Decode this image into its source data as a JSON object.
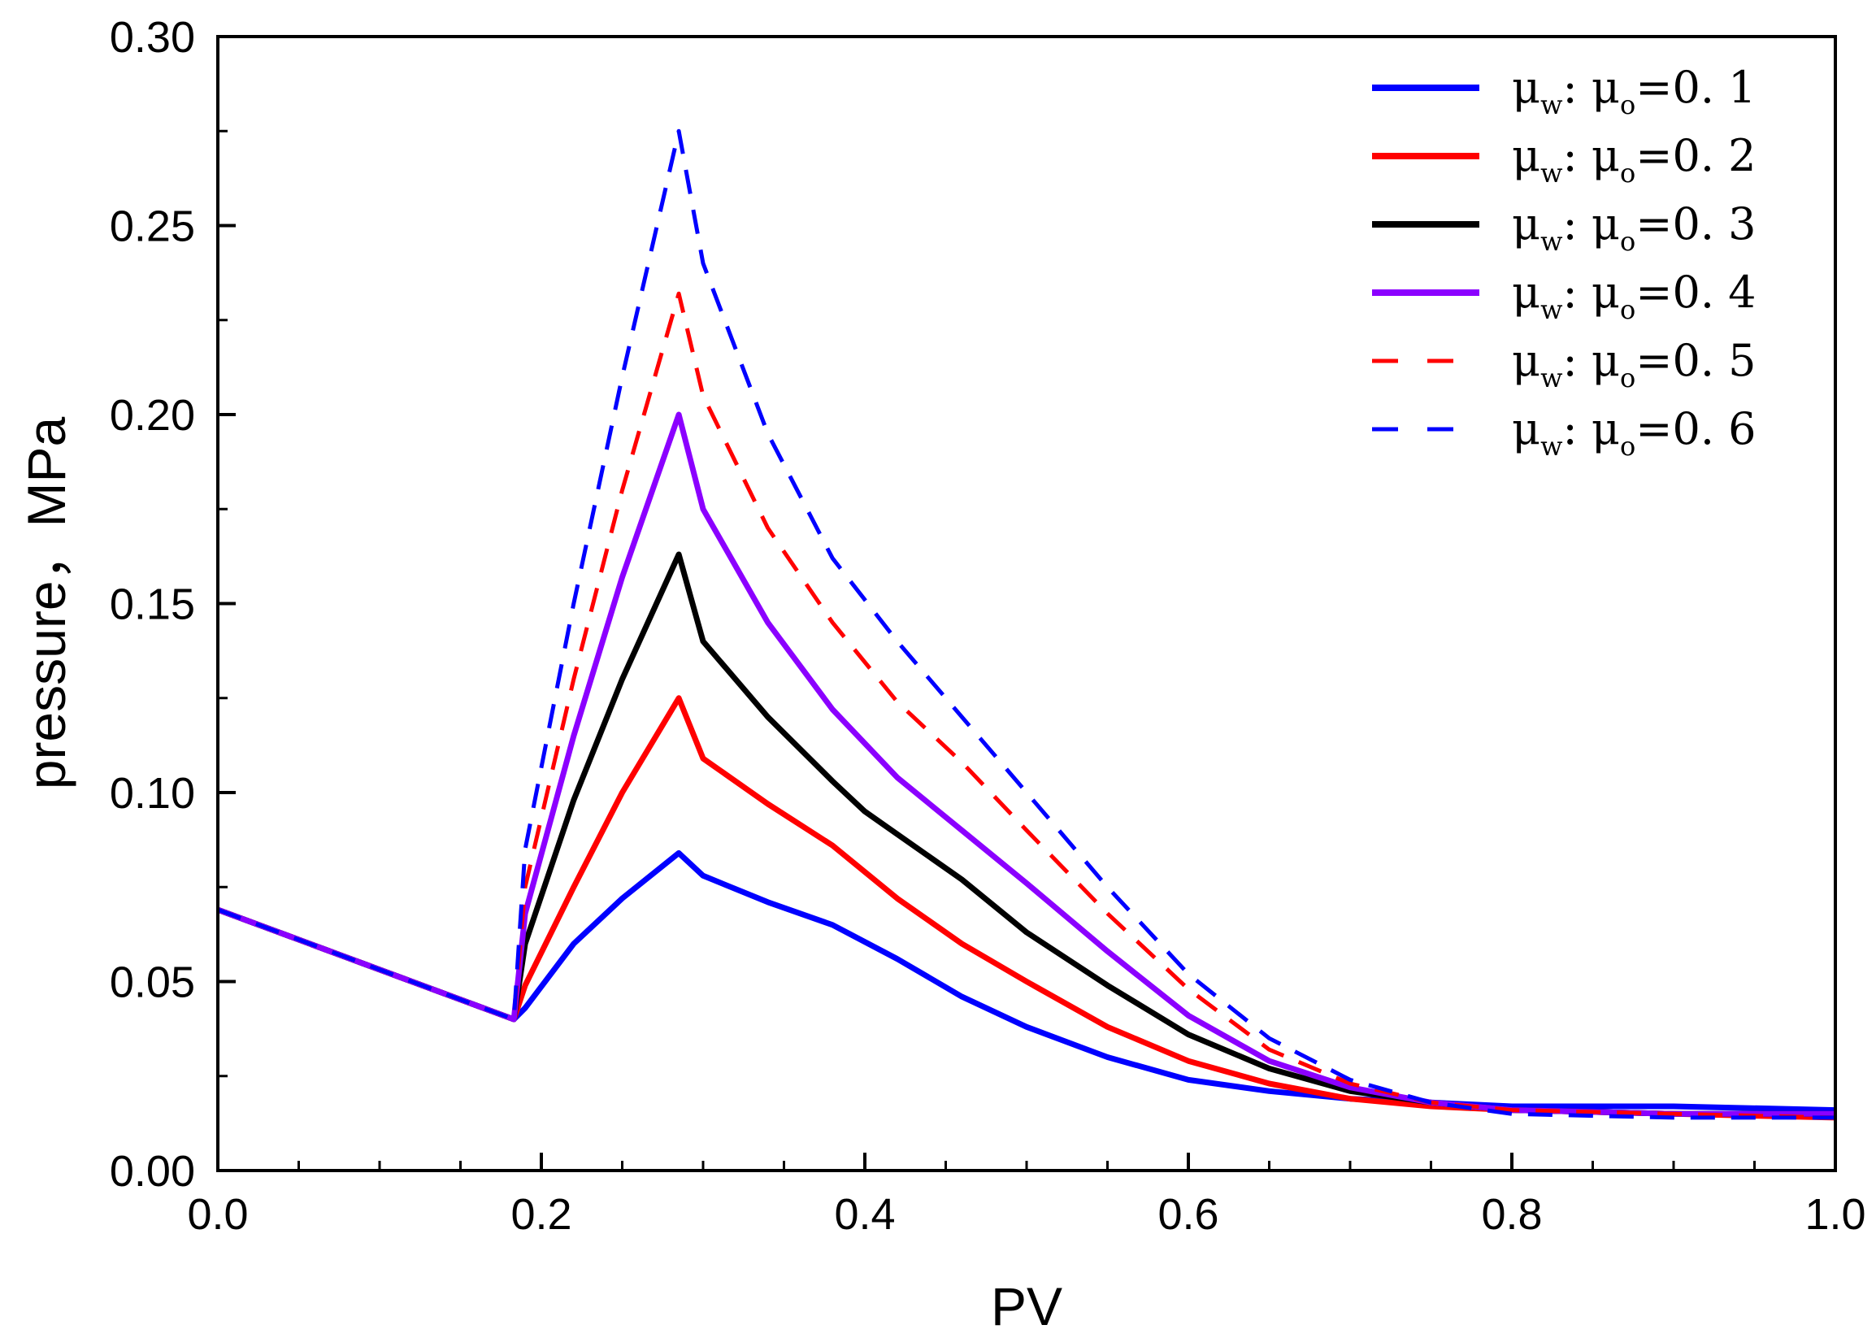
{
  "chart_data": {
    "type": "line",
    "title": "",
    "xlabel": "PV",
    "ylabel": "pressure，MPa",
    "xlim": [
      0.0,
      1.0
    ],
    "ylim": [
      0.0,
      0.3
    ],
    "x_ticks": [
      "0.0",
      "0.2",
      "0.4",
      "0.6",
      "0.8",
      "1.0"
    ],
    "y_ticks": [
      "0.00",
      "0.05",
      "0.10",
      "0.15",
      "0.20",
      "0.25",
      "0.30"
    ],
    "legend_position": "top-right",
    "series": [
      {
        "name": "μw: μo=0.1",
        "legend": {
          "symbol1": "μ",
          "sub1": "w",
          "sep": ":",
          "symbol2": "μ",
          "sub2": "o",
          "value": "=0. 1"
        },
        "color": "#0000ff",
        "style": "solid",
        "points": [
          [
            0.0,
            0.069
          ],
          [
            0.183,
            0.04
          ],
          [
            0.19,
            0.043
          ],
          [
            0.22,
            0.06
          ],
          [
            0.25,
            0.072
          ],
          [
            0.285,
            0.084
          ],
          [
            0.3,
            0.078
          ],
          [
            0.34,
            0.071
          ],
          [
            0.38,
            0.065
          ],
          [
            0.42,
            0.056
          ],
          [
            0.46,
            0.046
          ],
          [
            0.5,
            0.038
          ],
          [
            0.55,
            0.03
          ],
          [
            0.6,
            0.024
          ],
          [
            0.65,
            0.021
          ],
          [
            0.7,
            0.019
          ],
          [
            0.75,
            0.018
          ],
          [
            0.8,
            0.017
          ],
          [
            0.9,
            0.017
          ],
          [
            1.0,
            0.016
          ]
        ]
      },
      {
        "name": "μw: μo=0.2",
        "legend": {
          "symbol1": "μ",
          "sub1": "w",
          "sep": ":",
          "symbol2": "μ",
          "sub2": "o",
          "value": "=0. 2"
        },
        "color": "#ff0000",
        "style": "solid",
        "points": [
          [
            0.0,
            0.069
          ],
          [
            0.183,
            0.04
          ],
          [
            0.19,
            0.049
          ],
          [
            0.22,
            0.075
          ],
          [
            0.25,
            0.1
          ],
          [
            0.285,
            0.125
          ],
          [
            0.3,
            0.109
          ],
          [
            0.34,
            0.097
          ],
          [
            0.38,
            0.086
          ],
          [
            0.42,
            0.072
          ],
          [
            0.46,
            0.06
          ],
          [
            0.5,
            0.05
          ],
          [
            0.55,
            0.038
          ],
          [
            0.6,
            0.029
          ],
          [
            0.65,
            0.023
          ],
          [
            0.7,
            0.019
          ],
          [
            0.75,
            0.017
          ],
          [
            0.8,
            0.016
          ],
          [
            0.9,
            0.015
          ],
          [
            1.0,
            0.014
          ]
        ]
      },
      {
        "name": "μw: μo=0.3",
        "legend": {
          "symbol1": "μ",
          "sub1": "w",
          "sep": ":",
          "symbol2": "μ",
          "sub2": "o",
          "value": "=0. 3"
        },
        "color": "#000000",
        "style": "solid",
        "points": [
          [
            0.0,
            0.069
          ],
          [
            0.183,
            0.04
          ],
          [
            0.19,
            0.06
          ],
          [
            0.22,
            0.098
          ],
          [
            0.25,
            0.13
          ],
          [
            0.285,
            0.163
          ],
          [
            0.3,
            0.14
          ],
          [
            0.34,
            0.12
          ],
          [
            0.38,
            0.103
          ],
          [
            0.4,
            0.095
          ],
          [
            0.46,
            0.077
          ],
          [
            0.5,
            0.063
          ],
          [
            0.55,
            0.049
          ],
          [
            0.6,
            0.036
          ],
          [
            0.65,
            0.027
          ],
          [
            0.7,
            0.021
          ],
          [
            0.75,
            0.018
          ],
          [
            0.8,
            0.016
          ],
          [
            0.9,
            0.015
          ],
          [
            1.0,
            0.015
          ]
        ]
      },
      {
        "name": "μw: μo=0.4",
        "legend": {
          "symbol1": "μ",
          "sub1": "w",
          "sep": ":",
          "symbol2": "μ",
          "sub2": "o",
          "value": "=0. 4"
        },
        "color": "#8b00ff",
        "style": "solid",
        "points": [
          [
            0.0,
            0.069
          ],
          [
            0.183,
            0.04
          ],
          [
            0.19,
            0.068
          ],
          [
            0.22,
            0.115
          ],
          [
            0.25,
            0.157
          ],
          [
            0.285,
            0.2
          ],
          [
            0.3,
            0.175
          ],
          [
            0.34,
            0.145
          ],
          [
            0.38,
            0.122
          ],
          [
            0.42,
            0.104
          ],
          [
            0.46,
            0.09
          ],
          [
            0.5,
            0.076
          ],
          [
            0.55,
            0.058
          ],
          [
            0.6,
            0.041
          ],
          [
            0.65,
            0.029
          ],
          [
            0.7,
            0.022
          ],
          [
            0.75,
            0.018
          ],
          [
            0.8,
            0.016
          ],
          [
            0.9,
            0.015
          ],
          [
            1.0,
            0.015
          ]
        ]
      },
      {
        "name": "μw: μo=0.5",
        "legend": {
          "symbol1": "μ",
          "sub1": "w",
          "sep": ":",
          "symbol2": "μ",
          "sub2": "o",
          "value": "=0. 5"
        },
        "color": "#ff0000",
        "style": "dashed",
        "points": [
          [
            0.0,
            0.069
          ],
          [
            0.183,
            0.04
          ],
          [
            0.19,
            0.075
          ],
          [
            0.22,
            0.13
          ],
          [
            0.25,
            0.18
          ],
          [
            0.285,
            0.232
          ],
          [
            0.3,
            0.205
          ],
          [
            0.34,
            0.17
          ],
          [
            0.38,
            0.145
          ],
          [
            0.42,
            0.124
          ],
          [
            0.46,
            0.108
          ],
          [
            0.5,
            0.09
          ],
          [
            0.55,
            0.068
          ],
          [
            0.6,
            0.048
          ],
          [
            0.65,
            0.032
          ],
          [
            0.7,
            0.023
          ],
          [
            0.75,
            0.018
          ],
          [
            0.8,
            0.016
          ],
          [
            0.9,
            0.015
          ],
          [
            1.0,
            0.014
          ]
        ]
      },
      {
        "name": "μw: μo=0.6",
        "legend": {
          "symbol1": "μ",
          "sub1": "w",
          "sep": ":",
          "symbol2": "μ",
          "sub2": "o",
          "value": "=0. 6"
        },
        "color": "#0000ff",
        "style": "dashed",
        "points": [
          [
            0.0,
            0.069
          ],
          [
            0.183,
            0.04
          ],
          [
            0.19,
            0.085
          ],
          [
            0.22,
            0.15
          ],
          [
            0.25,
            0.21
          ],
          [
            0.285,
            0.275
          ],
          [
            0.3,
            0.24
          ],
          [
            0.34,
            0.195
          ],
          [
            0.38,
            0.162
          ],
          [
            0.42,
            0.14
          ],
          [
            0.46,
            0.12
          ],
          [
            0.5,
            0.1
          ],
          [
            0.55,
            0.075
          ],
          [
            0.6,
            0.052
          ],
          [
            0.65,
            0.035
          ],
          [
            0.7,
            0.024
          ],
          [
            0.75,
            0.018
          ],
          [
            0.8,
            0.015
          ],
          [
            0.9,
            0.014
          ],
          [
            1.0,
            0.014
          ]
        ]
      }
    ]
  }
}
